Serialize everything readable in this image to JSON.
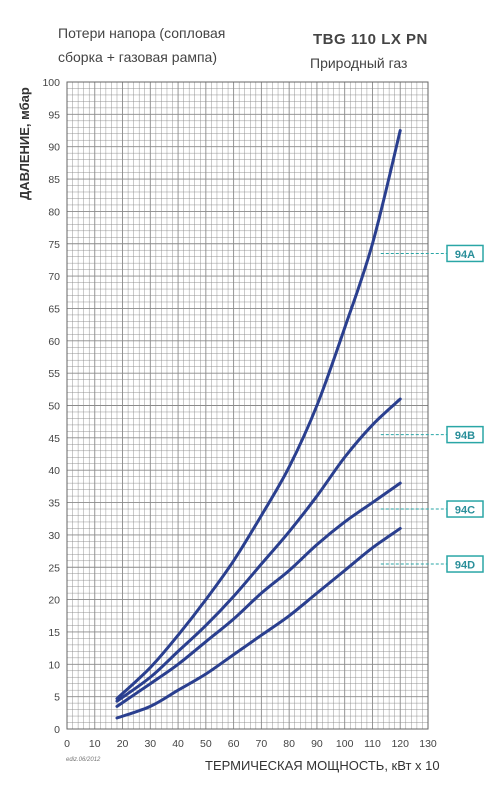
{
  "header": {
    "subtitle_line1": "Потери напора (сопловая",
    "subtitle_line2": "сборка + газовая рампа)",
    "model": "TBG 110 LX  PN",
    "gas": "Природный газ"
  },
  "footer": {
    "edition": "ediz.06/2012"
  },
  "colors": {
    "curve": "#2a3f8f",
    "grid": "#8a8a8a",
    "tag_border": "#2aa6a6",
    "tag_text": "#2a8f9a"
  },
  "chart_data": {
    "type": "line",
    "xlabel": "ТЕРМИЧЕСКАЯ МОЩНОСТЬ, кВт х 10",
    "ylabel": "ДАВЛЕНИЕ, мбар",
    "xlim": [
      0,
      130
    ],
    "ylim": [
      0,
      100
    ],
    "x_ticks": [
      0,
      10,
      20,
      30,
      40,
      50,
      60,
      70,
      80,
      90,
      100,
      110,
      120,
      130
    ],
    "y_ticks": [
      0,
      5,
      10,
      15,
      20,
      25,
      30,
      35,
      40,
      45,
      50,
      55,
      60,
      65,
      70,
      75,
      80,
      85,
      90,
      95,
      100
    ],
    "grid": true,
    "series": [
      {
        "name": "94A",
        "x": [
          18,
          30,
          40,
          50,
          60,
          70,
          80,
          90,
          100,
          110,
          120
        ],
        "y": [
          4.7,
          9.5,
          14.5,
          20,
          26,
          33,
          40.5,
          50,
          62,
          75,
          92.5
        ]
      },
      {
        "name": "94B",
        "x": [
          18,
          30,
          40,
          50,
          60,
          70,
          80,
          90,
          100,
          110,
          120
        ],
        "y": [
          4.3,
          8.0,
          12.0,
          16.0,
          20.5,
          25.5,
          30.5,
          36.0,
          42.0,
          47.0,
          51.0
        ]
      },
      {
        "name": "94C",
        "x": [
          18,
          30,
          40,
          50,
          60,
          70,
          80,
          90,
          100,
          110,
          120
        ],
        "y": [
          3.5,
          7.0,
          10.0,
          13.5,
          17.0,
          21.0,
          24.5,
          28.5,
          32.0,
          35.0,
          38.0
        ]
      },
      {
        "name": "94D",
        "x": [
          18,
          30,
          40,
          50,
          60,
          70,
          80,
          90,
          100,
          110,
          120
        ],
        "y": [
          1.7,
          3.5,
          6.0,
          8.5,
          11.5,
          14.5,
          17.5,
          21.0,
          24.5,
          28.0,
          31.0
        ]
      }
    ],
    "tags": [
      {
        "label": "94A",
        "y": 73.5
      },
      {
        "label": "94B",
        "y": 45.5
      },
      {
        "label": "94C",
        "y": 34.0
      },
      {
        "label": "94D",
        "y": 25.5
      }
    ]
  }
}
